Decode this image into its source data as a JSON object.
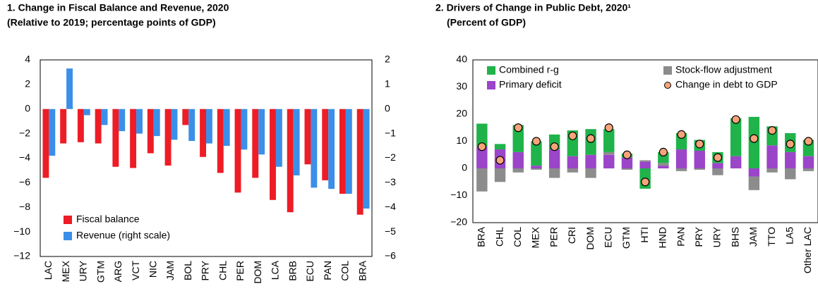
{
  "chart_data": [
    {
      "type": "bar",
      "title": "1. Change in Fiscal Balance and Revenue, 2020",
      "subtitle": "(Relative to 2019; percentage points of GDP)",
      "categories": [
        "LAC",
        "MEX",
        "URY",
        "GTM",
        "ARG",
        "VCT",
        "NIC",
        "JAM",
        "BOL",
        "PRY",
        "CHL",
        "PER",
        "DOM",
        "LCA",
        "BRB",
        "ECU",
        "PAN",
        "COL",
        "BRA"
      ],
      "series": [
        {
          "name": "Fiscal balance",
          "color": "#ee1c25",
          "values": [
            -5.6,
            -2.8,
            -2.7,
            -2.8,
            -4.7,
            -4.8,
            -3.6,
            -4.6,
            -1.3,
            -3.9,
            -5.2,
            -6.8,
            -5.6,
            -7.4,
            -8.4,
            -4.5,
            -5.8,
            -6.9,
            -8.6
          ]
        },
        {
          "name": "Revenue (right scale)",
          "color": "#3b8fe8",
          "axis": "y2",
          "values": [
            -1.9,
            1.65,
            -0.25,
            -0.65,
            -0.9,
            -1.0,
            -1.1,
            -1.25,
            -1.3,
            -1.4,
            -1.5,
            -1.65,
            -1.85,
            -2.35,
            -2.7,
            -3.2,
            -3.25,
            -3.45,
            -4.05
          ]
        }
      ],
      "ylim": [
        -12,
        4
      ],
      "yticks": [
        {
          "value": -12,
          "label": "−12"
        },
        {
          "value": -10,
          "label": "−10"
        },
        {
          "value": -8,
          "label": "−8"
        },
        {
          "value": -6,
          "label": "−6"
        },
        {
          "value": -4,
          "label": "−4"
        },
        {
          "value": -2,
          "label": "−2"
        },
        0,
        2,
        4
      ],
      "y2lim": [
        -6,
        2
      ],
      "y2ticks": [
        {
          "value": -6,
          "label": "−6"
        },
        {
          "value": -5,
          "label": "−5"
        },
        {
          "value": -4,
          "label": "−4"
        },
        {
          "value": -3,
          "label": "−3"
        },
        {
          "value": -2,
          "label": "−2"
        },
        {
          "value": -1,
          "label": "−1"
        },
        0,
        1,
        2
      ],
      "legend": "lower left"
    },
    {
      "type": "stacked_bar",
      "title": "2. Drivers of Change in Public Debt, 2020¹",
      "subtitle": "(Percent of GDP)",
      "categories": [
        "BRA",
        "CHL",
        "COL",
        "MEX",
        "PER",
        "CRI",
        "DOM",
        "ECU",
        "GTM",
        "HTI",
        "HND",
        "PAN",
        "PRY",
        "URY",
        "BHS",
        "JAM",
        "TTO",
        "LA5",
        "Other LAC"
      ],
      "series": [
        {
          "name": "Combined r-g",
          "color": "#1fb34a",
          "values": [
            8.5,
            2,
            10,
            9,
            5.5,
            9.5,
            9.5,
            8.5,
            1.5,
            -7.5,
            4,
            6,
            4,
            4,
            14,
            19,
            7,
            7,
            6
          ]
        },
        {
          "name": "Stock-flow adjustment",
          "color": "#8c8c8c",
          "values": [
            -8.5,
            -5,
            -1.5,
            -0.5,
            -3.5,
            -1.5,
            -3.5,
            1,
            -0.5,
            0.5,
            1,
            -1,
            -0.5,
            -2.5,
            0,
            -5,
            -1.5,
            -4,
            -1
          ]
        },
        {
          "name": "Primary deficit",
          "color": "#9b45c9",
          "values": [
            8,
            7,
            6,
            1,
            7,
            4.5,
            5,
            5,
            4,
            2.5,
            1,
            7,
            6.5,
            2,
            4.5,
            -3,
            8.5,
            6,
            4.5
          ]
        },
        {
          "name": "Change in debt to GDP",
          "type": "scatter",
          "color": "#f7a37a",
          "values": [
            8,
            3,
            15,
            10,
            8,
            12,
            11,
            15,
            5,
            -5,
            6,
            12.5,
            9,
            4,
            18,
            11,
            14,
            9,
            10
          ]
        }
      ],
      "ylim": [
        -20,
        40
      ],
      "yticks": [
        {
          "value": -20,
          "label": "−20"
        },
        {
          "value": -10,
          "label": "−10"
        },
        0,
        10,
        20,
        30,
        40
      ],
      "legend": "upper"
    }
  ]
}
